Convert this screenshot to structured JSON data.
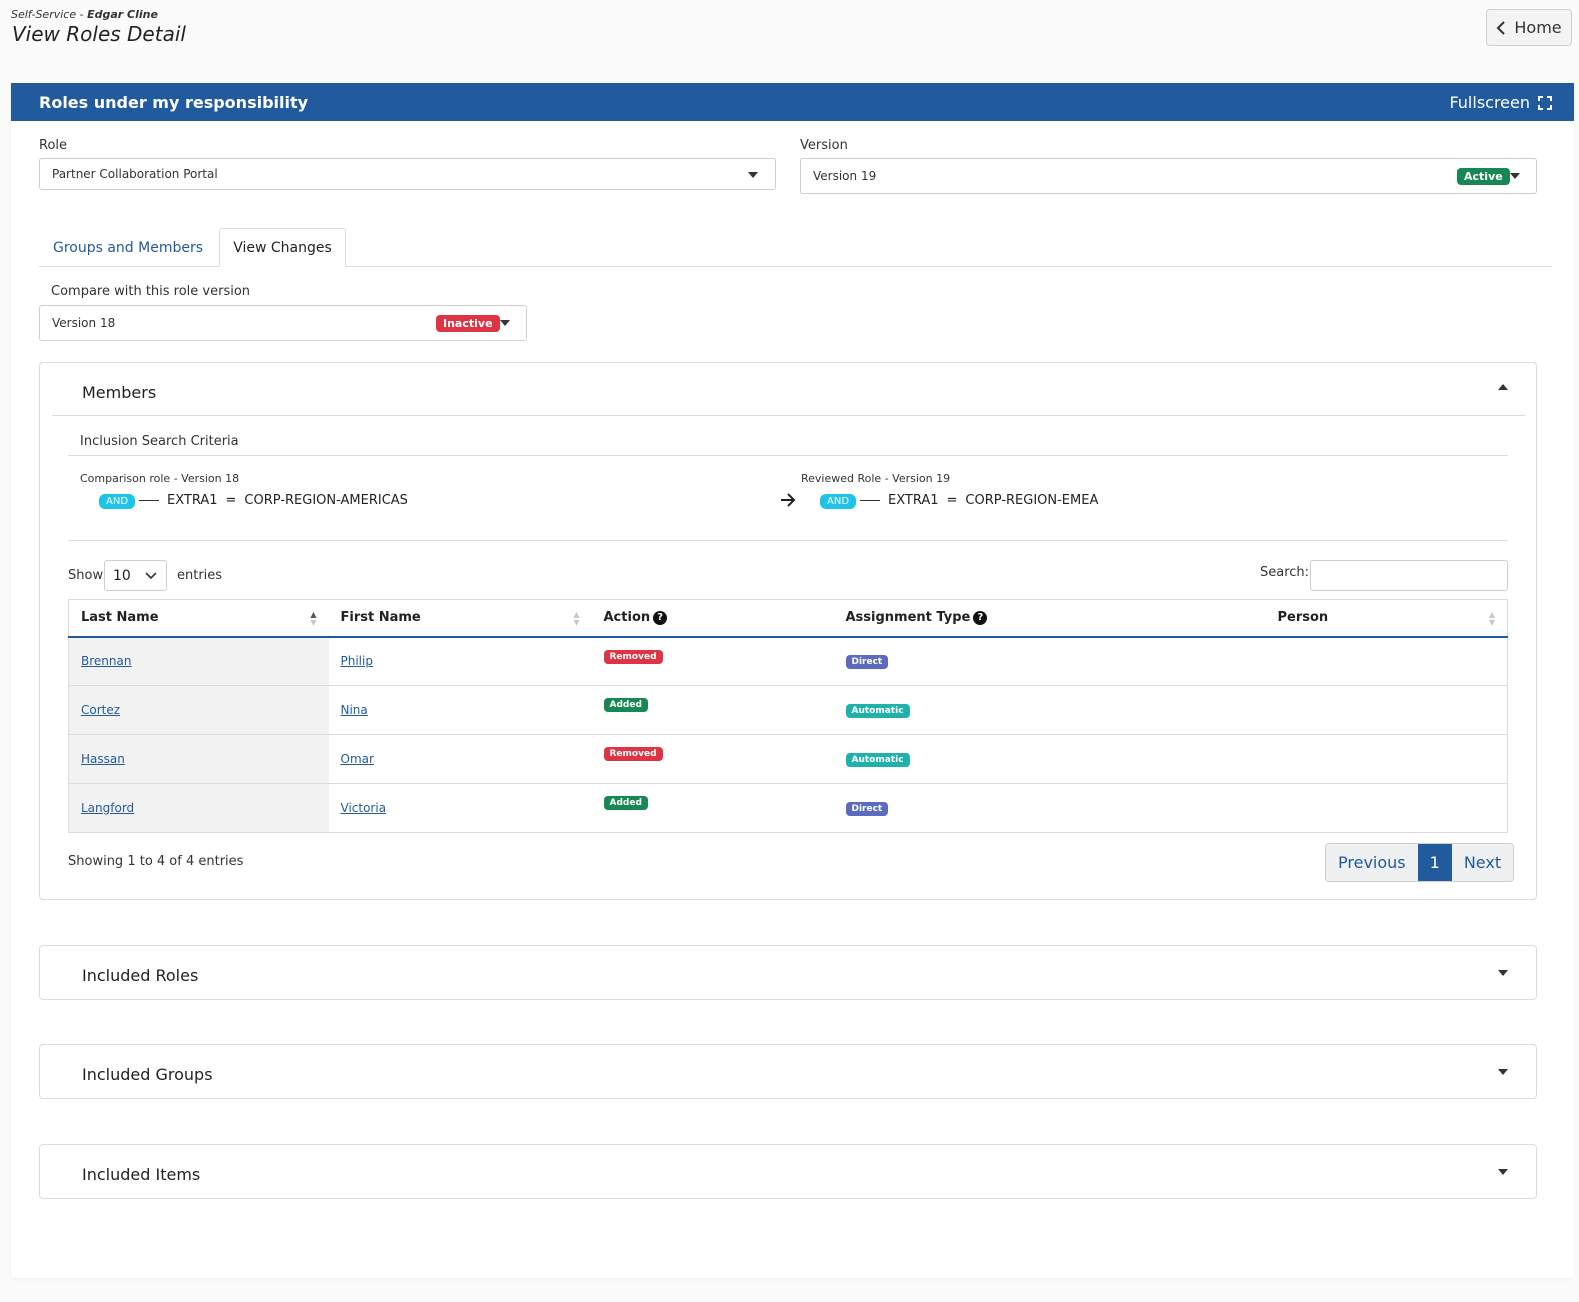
{
  "header": {
    "crumb_prefix": "Self-Service - ",
    "crumb_user": "Edgar Cline",
    "title": "View Roles Detail",
    "home_label": "Home"
  },
  "card": {
    "title": "Roles under my responsibility",
    "fullscreen_label": "Fullscreen"
  },
  "role": {
    "label": "Role",
    "value": "Partner Collaboration Portal"
  },
  "version": {
    "label": "Version",
    "value": "Version 19",
    "badge": "Active"
  },
  "tabs": [
    {
      "label": "Groups and Members"
    },
    {
      "label": "View Changes"
    }
  ],
  "compare": {
    "label": "Compare with this role version",
    "value": "Version 18",
    "badge": "Inactive"
  },
  "members": {
    "title": "Members",
    "criteria_title": "Inclusion Search Criteria",
    "left": {
      "caption": "Comparison role - Version 18",
      "op": "AND",
      "field": "EXTRA1",
      "eq": "=",
      "value": "CORP-REGION-AMERICAS"
    },
    "right": {
      "caption": "Reviewed Role - Version 19",
      "op": "AND",
      "field": "EXTRA1",
      "eq": "=",
      "value": "CORP-REGION-EMEA"
    },
    "show_label": "Show",
    "entries_value": "10",
    "entries_label": "entries",
    "search_label": "Search:",
    "columns": [
      "Last Name",
      "First Name",
      "Action",
      "Assignment Type",
      "Person"
    ],
    "rows": [
      {
        "last": "Brennan",
        "first": "Philip",
        "action": "Removed",
        "type": "Direct"
      },
      {
        "last": "Cortez",
        "first": "Nina",
        "action": "Added",
        "type": "Automatic"
      },
      {
        "last": "Hassan",
        "first": "Omar",
        "action": "Removed",
        "type": "Automatic"
      },
      {
        "last": "Langford",
        "first": "Victoria",
        "action": "Added",
        "type": "Direct"
      }
    ],
    "info": "Showing 1 to 4 of 4 entries",
    "pager": {
      "prev": "Previous",
      "page": "1",
      "next": "Next"
    }
  },
  "sections": [
    {
      "title": "Included Roles"
    },
    {
      "title": "Included Groups"
    },
    {
      "title": "Included Items"
    }
  ],
  "colors": {
    "primary": "#225a9e",
    "active": "#198754",
    "inactive": "#dc3545",
    "and": "#1ec3ea",
    "direct": "#5c6bc0",
    "automatic": "#20b2aa"
  }
}
